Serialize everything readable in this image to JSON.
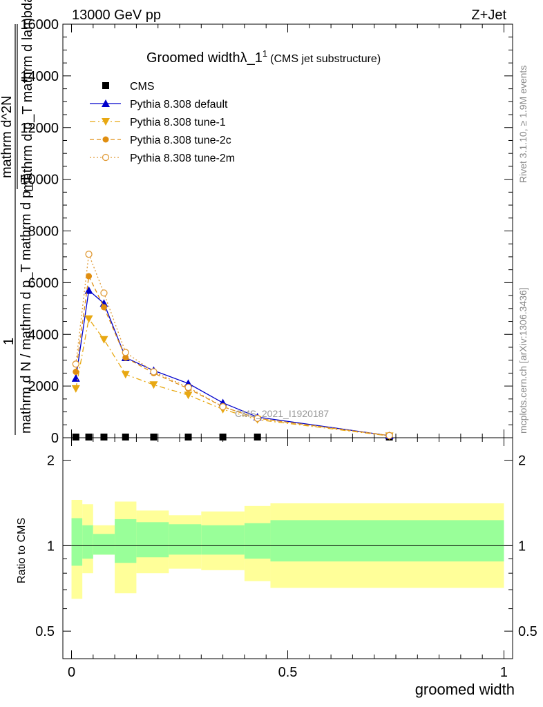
{
  "header": {
    "left": "13000 GeV pp",
    "right": "Z+Jet"
  },
  "chart_data": {
    "type": "line",
    "title_main": "Groomed width",
    "title_symbol": "λ_1",
    "title_sup": "1",
    "title_note": "(CMS jet substructure)",
    "analysis_label": "CMS_2021_I1920187",
    "side_label_top": "Rivet 3.1.10, ≥ 1.9M events",
    "side_label_bottom": "mcplots.cern.ch [arXiv:1306.3436]",
    "xlabel": "groomed width",
    "ylabel_main_line1": "1",
    "ylabel_main_line2": "mathrm d N / mathrm d p_T mathrm d p_T",
    "ylabel_main_line3": "mathrm d^2N",
    "ylabel_main_line4": "mathrm d p_T mathrm d lambda",
    "ylabel_ratio": "Ratio to CMS",
    "xlim": [
      -0.02,
      1.02
    ],
    "ylim": [
      0,
      16000
    ],
    "ratio_ylim": [
      0.4,
      2.4
    ],
    "x_ticks": [
      0,
      0.5,
      1
    ],
    "x_tick_labels": [
      "0",
      "0.5",
      "1"
    ],
    "y_ticks": [
      0,
      2000,
      4000,
      6000,
      8000,
      10000,
      12000,
      14000,
      16000
    ],
    "y_tick_labels": [
      "0",
      "2000",
      "4000",
      "6000",
      "8000",
      "10000",
      "12000",
      "14000",
      "16000"
    ],
    "ratio_ticks": [
      0.5,
      1,
      2
    ],
    "ratio_tick_labels": [
      "0.5",
      "1",
      "2"
    ],
    "x": [
      0.01,
      0.04,
      0.075,
      0.125,
      0.19,
      0.27,
      0.35,
      0.43,
      0.735
    ],
    "series": [
      {
        "name": "CMS",
        "style": "data",
        "color": "#000000",
        "values": [
          0,
          0,
          0,
          0,
          0,
          0,
          0,
          0,
          0
        ]
      },
      {
        "name": "Pythia 8.308 default",
        "style": "solid-triangle-up",
        "color": "#0000cc",
        "values": [
          2300,
          5700,
          5200,
          3100,
          2600,
          2100,
          1350,
          800,
          80
        ]
      },
      {
        "name": "Pythia 8.308 tune-1",
        "style": "dashdot-triangle-down",
        "color": "#e8a812",
        "values": [
          1900,
          4600,
          3800,
          2450,
          2050,
          1650,
          1100,
          700,
          70
        ]
      },
      {
        "name": "Pythia 8.308 tune-2c",
        "style": "dashed-filled-circle",
        "color": "#e08e10",
        "values": [
          2550,
          6250,
          5050,
          3100,
          2500,
          1900,
          1200,
          750,
          80
        ]
      },
      {
        "name": "Pythia 8.308 tune-2m",
        "style": "dotted-open-circle",
        "color": "#e09a36",
        "values": [
          2850,
          7100,
          5600,
          3300,
          2550,
          1950,
          1200,
          750,
          85
        ]
      }
    ],
    "ratio_bands": {
      "edges": [
        0.0,
        0.025,
        0.05,
        0.1,
        0.15,
        0.225,
        0.3,
        0.4,
        0.46,
        1.0
      ],
      "stat_lo": [
        0.85,
        0.9,
        0.93,
        0.87,
        0.91,
        0.93,
        0.93,
        0.9,
        0.88
      ],
      "stat_hi": [
        1.25,
        1.18,
        1.1,
        1.24,
        1.21,
        1.19,
        1.18,
        1.2,
        1.23
      ],
      "total_lo": [
        0.65,
        0.8,
        0.93,
        0.68,
        0.8,
        0.83,
        0.82,
        0.75,
        0.71
      ],
      "total_hi": [
        1.45,
        1.4,
        1.18,
        1.43,
        1.33,
        1.28,
        1.32,
        1.38,
        1.41
      ],
      "stat_color": "#99ff99",
      "total_color": "#ffff99"
    }
  }
}
